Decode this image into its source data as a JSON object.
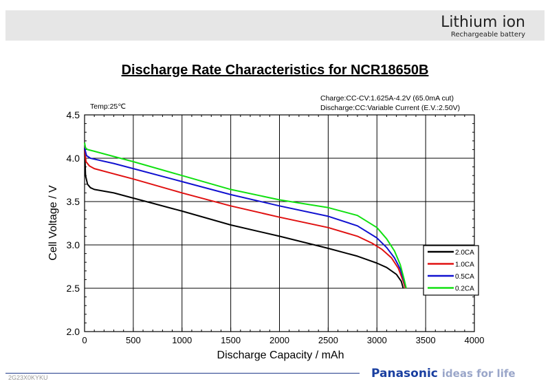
{
  "header": {
    "brand_main": "Lithium ion",
    "brand_sub": "Rechargeable battery"
  },
  "title": "Discharge Rate Characteristics for NCR18650B",
  "conditions": {
    "temp": "Temp:25℃",
    "charge": "Charge:CC-CV:1.625A-4.2V (65.0mA cut)",
    "discharge": "Discharge:CC:Variable Current (E.V.:2.50V)"
  },
  "footer": {
    "code": "2G23X0KYKU",
    "logo": "Panasonic",
    "tagline": "ideas for life"
  },
  "colors": {
    "2.0CA": "#000000",
    "1.0CA": "#e01010",
    "0.5CA": "#1010d0",
    "0.2CA": "#10e010"
  },
  "chart_data": {
    "type": "line",
    "title": "Discharge Rate Characteristics for NCR18650B",
    "xlabel": "Discharge Capacity / mAh",
    "ylabel": "Cell Voltage / V",
    "xlim": [
      0,
      4000
    ],
    "ylim": [
      2.0,
      4.5
    ],
    "xticks": [
      0,
      500,
      1000,
      1500,
      2000,
      2500,
      3000,
      3500,
      4000
    ],
    "yticks": [
      2.0,
      2.5,
      3.0,
      3.5,
      4.0,
      4.5
    ],
    "grid": true,
    "legend_position": "bottom-right",
    "series": [
      {
        "name": "2.0CA",
        "color": "#000000",
        "x": [
          0,
          10,
          30,
          60,
          100,
          200,
          300,
          500,
          700,
          1000,
          1500,
          2000,
          2500,
          2800,
          3000,
          3100,
          3200,
          3250,
          3270
        ],
        "y": [
          4.12,
          3.8,
          3.7,
          3.66,
          3.64,
          3.62,
          3.6,
          3.54,
          3.48,
          3.39,
          3.23,
          3.1,
          2.96,
          2.87,
          2.79,
          2.74,
          2.66,
          2.58,
          2.5
        ]
      },
      {
        "name": "1.0CA",
        "color": "#e01010",
        "x": [
          0,
          15,
          50,
          100,
          300,
          500,
          1000,
          1500,
          2000,
          2500,
          2800,
          2950,
          3050,
          3150,
          3220,
          3270,
          3290
        ],
        "y": [
          4.12,
          3.96,
          3.91,
          3.88,
          3.82,
          3.76,
          3.6,
          3.45,
          3.32,
          3.2,
          3.1,
          3.02,
          2.95,
          2.85,
          2.73,
          2.58,
          2.5
        ]
      },
      {
        "name": "0.5CA",
        "color": "#1010d0",
        "x": [
          0,
          20,
          60,
          100,
          300,
          500,
          1000,
          1500,
          2000,
          2500,
          2800,
          3000,
          3100,
          3180,
          3240,
          3280,
          3300
        ],
        "y": [
          4.12,
          4.03,
          4.0,
          3.99,
          3.94,
          3.88,
          3.73,
          3.58,
          3.45,
          3.33,
          3.22,
          3.08,
          2.97,
          2.85,
          2.72,
          2.58,
          2.5
        ]
      },
      {
        "name": "0.2CA",
        "color": "#10e010",
        "x": [
          0,
          10,
          30,
          100,
          300,
          500,
          1000,
          1500,
          2000,
          2500,
          2800,
          3000,
          3100,
          3180,
          3240,
          3280,
          3300
        ],
        "y": [
          4.18,
          4.12,
          4.1,
          4.08,
          4.02,
          3.96,
          3.8,
          3.64,
          3.52,
          3.43,
          3.34,
          3.2,
          3.07,
          2.93,
          2.77,
          2.6,
          2.5
        ]
      }
    ]
  }
}
